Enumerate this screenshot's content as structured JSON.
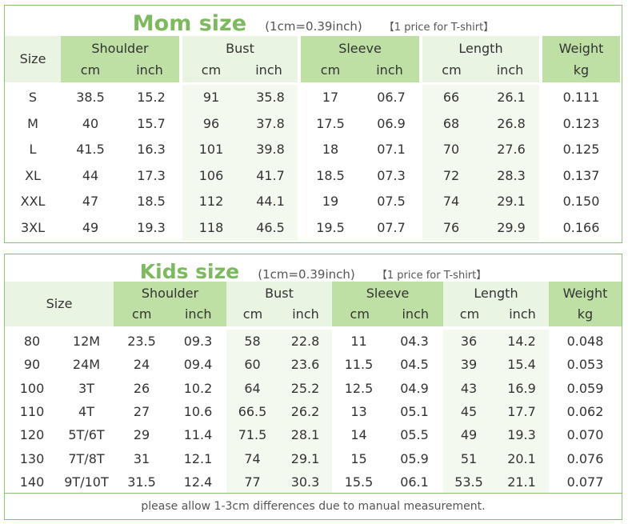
{
  "mom": {
    "title": "Mom size",
    "conversion": "(1cm=0.39inch)",
    "price_note": "【1 price for T-shirt】",
    "size_label": "Size",
    "groups": [
      {
        "label": "Shoulder",
        "units": [
          "cm",
          "inch"
        ]
      },
      {
        "label": "Bust",
        "units": [
          "cm",
          "inch"
        ]
      },
      {
        "label": "Sleeve",
        "units": [
          "cm",
          "inch"
        ]
      },
      {
        "label": "Length",
        "units": [
          "cm",
          "inch"
        ]
      },
      {
        "label": "Weight",
        "units": [
          "kg"
        ]
      }
    ],
    "rows": [
      [
        "S",
        "38.5",
        "15.2",
        "91",
        "35.8",
        "17",
        "06.7",
        "66",
        "26.1",
        "0.111"
      ],
      [
        "M",
        "40",
        "15.7",
        "96",
        "37.8",
        "17.5",
        "06.9",
        "68",
        "26.8",
        "0.123"
      ],
      [
        "L",
        "41.5",
        "16.3",
        "101",
        "39.8",
        "18",
        "07.1",
        "70",
        "27.6",
        "0.125"
      ],
      [
        "XL",
        "44",
        "17.3",
        "106",
        "41.7",
        "18.5",
        "07.3",
        "72",
        "28.3",
        "0.137"
      ],
      [
        "XXL",
        "47",
        "18.5",
        "112",
        "44.1",
        "19",
        "07.5",
        "74",
        "29.1",
        "0.150"
      ],
      [
        "3XL",
        "49",
        "19.3",
        "118",
        "46.5",
        "19.5",
        "07.7",
        "76",
        "29.9",
        "0.166"
      ]
    ]
  },
  "kids": {
    "title": "Kids size",
    "conversion": "(1cm=0.39inch)",
    "price_note": "【1 price for T-shirt】",
    "size_label": "Size",
    "groups": [
      {
        "label": "Shoulder",
        "units": [
          "cm",
          "inch"
        ]
      },
      {
        "label": "Bust",
        "units": [
          "cm",
          "inch"
        ]
      },
      {
        "label": "Sleeve",
        "units": [
          "cm",
          "inch"
        ]
      },
      {
        "label": "Length",
        "units": [
          "cm",
          "inch"
        ]
      },
      {
        "label": "Weight",
        "units": [
          "kg"
        ]
      }
    ],
    "rows": [
      [
        "80",
        "12M",
        "23.5",
        "09.3",
        "58",
        "22.8",
        "11",
        "04.3",
        "36",
        "14.2",
        "0.048"
      ],
      [
        "90",
        "24M",
        "24",
        "09.4",
        "60",
        "23.6",
        "11.5",
        "04.5",
        "39",
        "15.4",
        "0.053"
      ],
      [
        "100",
        "3T",
        "26",
        "10.2",
        "64",
        "25.2",
        "12.5",
        "04.9",
        "43",
        "16.9",
        "0.059"
      ],
      [
        "110",
        "4T",
        "27",
        "10.6",
        "66.5",
        "26.2",
        "13",
        "05.1",
        "45",
        "17.7",
        "0.062"
      ],
      [
        "120",
        "5T/6T",
        "29",
        "11.4",
        "71.5",
        "28.1",
        "14",
        "05.5",
        "49",
        "19.3",
        "0.070"
      ],
      [
        "130",
        "7T/8T",
        "31",
        "12.1",
        "74",
        "29.1",
        "15",
        "05.9",
        "51",
        "20.1",
        "0.076"
      ],
      [
        "140",
        "9T/10T",
        "31.5",
        "12.4",
        "77",
        "30.3",
        "15.5",
        "06.1",
        "53.5",
        "21.1",
        "0.077"
      ]
    ],
    "footer": "please allow 1-3cm differences due to manual measurement."
  },
  "colors": {
    "accent": "#7dba5e",
    "header_dark": "#bfe0a4",
    "header_light": "#e9f4e2",
    "border": "#8cc174"
  }
}
